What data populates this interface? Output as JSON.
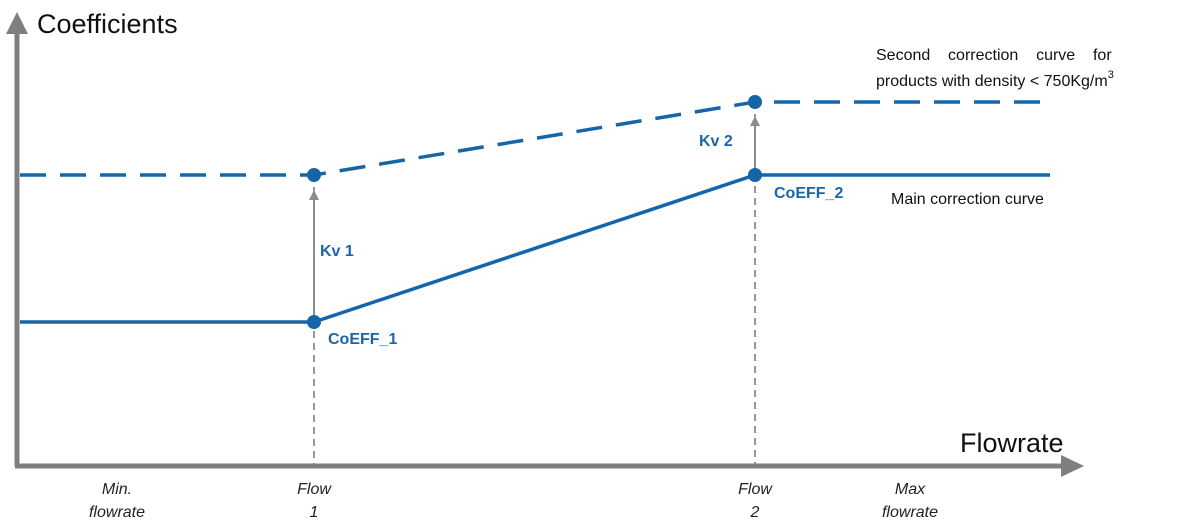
{
  "colors": {
    "axis": "#7f7f7f",
    "curve": "#1565a8",
    "label_blue": "#1a66a8",
    "arrow": "#8c8c8c"
  },
  "axes": {
    "y_title": "Coefficients",
    "x_title": "Flowrate"
  },
  "x_ticks": [
    {
      "line1": "Min.",
      "line2": "flowrate"
    },
    {
      "line1": "Flow",
      "line2": "1"
    },
    {
      "line1": "Flow",
      "line2": "2"
    },
    {
      "line1": "Max",
      "line2": "flowrate"
    }
  ],
  "points": {
    "coeff_1": "CoEFF_1",
    "coeff_2": "CoEFF_2",
    "kv_1": "Kv 1",
    "kv_2": "Kv 2"
  },
  "curves": {
    "main": "Main correction curve",
    "second_line1": "Second    correction    curve    for",
    "second_line2": "products with density < 750Kg/m",
    "second_sup": "3"
  }
}
